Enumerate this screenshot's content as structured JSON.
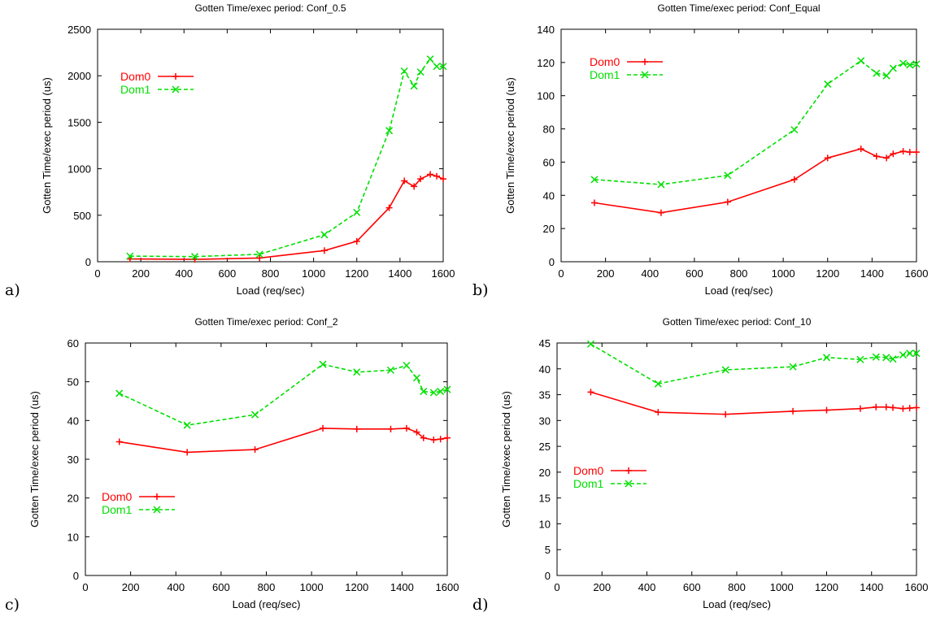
{
  "colors": {
    "dom0": "#ff0000",
    "dom1": "#00e000",
    "axis": "#000000",
    "background": "#ffffff"
  },
  "chart_data": [
    {
      "panel_label": "a)",
      "type": "line",
      "title": "Gotten Time/exec period: Conf_0.5",
      "xlabel": "Load (req/sec)",
      "ylabel": "Gotten Time/exec period (us)",
      "xlim": [
        0,
        1600
      ],
      "ylim": [
        0,
        2500
      ],
      "xticks": [
        0,
        200,
        400,
        600,
        800,
        1000,
        1200,
        1400,
        1600
      ],
      "yticks": [
        0,
        500,
        1000,
        1500,
        2000,
        2500
      ],
      "grid": false,
      "legend_position": "top-left",
      "series": [
        {
          "name": "Dom0",
          "color": "#ff0000",
          "style": "solid",
          "marker": "plus",
          "x": [
            150,
            450,
            750,
            1050,
            1200,
            1350,
            1420,
            1465,
            1495,
            1540,
            1570,
            1600
          ],
          "y": [
            30,
            25,
            40,
            120,
            220,
            580,
            870,
            810,
            890,
            940,
            920,
            890
          ]
        },
        {
          "name": "Dom1",
          "color": "#00e000",
          "style": "dashed",
          "marker": "x",
          "x": [
            150,
            450,
            750,
            1050,
            1200,
            1350,
            1420,
            1465,
            1495,
            1540,
            1570,
            1600
          ],
          "y": [
            60,
            55,
            80,
            290,
            530,
            1410,
            2050,
            1890,
            2040,
            2180,
            2100,
            2100
          ]
        }
      ]
    },
    {
      "panel_label": "b)",
      "type": "line",
      "title": "Gotten Time/exec period: Conf_Equal",
      "xlabel": "Load (req/sec)",
      "ylabel": "Gotten Time/exec period (us)",
      "xlim": [
        0,
        1600
      ],
      "ylim": [
        0,
        140
      ],
      "xticks": [
        0,
        200,
        400,
        600,
        800,
        1000,
        1200,
        1400,
        1600
      ],
      "yticks": [
        0,
        20,
        40,
        60,
        80,
        100,
        120,
        140
      ],
      "grid": false,
      "legend_position": "top-left",
      "series": [
        {
          "name": "Dom0",
          "color": "#ff0000",
          "style": "solid",
          "marker": "plus",
          "x": [
            150,
            450,
            750,
            1050,
            1200,
            1350,
            1420,
            1465,
            1495,
            1540,
            1570,
            1600
          ],
          "y": [
            35.5,
            29.5,
            36,
            49.5,
            62.5,
            68,
            63.5,
            62.5,
            65,
            66.5,
            66,
            66
          ]
        },
        {
          "name": "Dom1",
          "color": "#00e000",
          "style": "dashed",
          "marker": "x",
          "x": [
            150,
            450,
            750,
            1050,
            1200,
            1350,
            1420,
            1465,
            1495,
            1540,
            1570,
            1600
          ],
          "y": [
            49.5,
            46.5,
            52,
            79.5,
            107,
            121,
            113.5,
            112,
            116.5,
            119.5,
            118.5,
            119
          ]
        }
      ]
    },
    {
      "panel_label": "c)",
      "type": "line",
      "title": "Gotten Time/exec period: Conf_2",
      "xlabel": "Load (req/sec)",
      "ylabel": "Gotten Time/exec period (us)",
      "xlim": [
        0,
        1600
      ],
      "ylim": [
        0,
        60
      ],
      "xticks": [
        0,
        200,
        400,
        600,
        800,
        1000,
        1200,
        1400,
        1600
      ],
      "yticks": [
        0,
        10,
        20,
        30,
        40,
        50,
        60
      ],
      "grid": false,
      "legend_position": "bottom-left",
      "series": [
        {
          "name": "Dom0",
          "color": "#ff0000",
          "style": "solid",
          "marker": "plus",
          "x": [
            150,
            450,
            750,
            1050,
            1200,
            1350,
            1420,
            1465,
            1495,
            1540,
            1570,
            1600
          ],
          "y": [
            34.5,
            31.8,
            32.5,
            38,
            37.8,
            37.8,
            38,
            37,
            35.5,
            35,
            35.2,
            35.5
          ]
        },
        {
          "name": "Dom1",
          "color": "#00e000",
          "style": "dashed",
          "marker": "x",
          "x": [
            150,
            450,
            750,
            1050,
            1200,
            1350,
            1420,
            1465,
            1495,
            1540,
            1570,
            1600
          ],
          "y": [
            47,
            38.8,
            41.5,
            54.5,
            52.5,
            53,
            54.2,
            51,
            47.5,
            47.2,
            47.5,
            48
          ]
        }
      ]
    },
    {
      "panel_label": "d)",
      "type": "line",
      "title": "Gotten Time/exec period: Conf_10",
      "xlabel": "Load (req/sec)",
      "ylabel": "Gotten Time/exec period (us)",
      "xlim": [
        0,
        1600
      ],
      "ylim": [
        0,
        45
      ],
      "xticks": [
        0,
        200,
        400,
        600,
        800,
        1000,
        1200,
        1400,
        1600
      ],
      "yticks": [
        0,
        5,
        10,
        15,
        20,
        25,
        30,
        35,
        40,
        45
      ],
      "grid": false,
      "legend_position": "middle-left",
      "series": [
        {
          "name": "Dom0",
          "color": "#ff0000",
          "style": "solid",
          "marker": "plus",
          "x": [
            150,
            450,
            750,
            1050,
            1200,
            1350,
            1420,
            1465,
            1495,
            1540,
            1570,
            1600
          ],
          "y": [
            35.5,
            31.6,
            31.2,
            31.8,
            32,
            32.3,
            32.6,
            32.6,
            32.5,
            32.3,
            32.4,
            32.5
          ]
        },
        {
          "name": "Dom1",
          "color": "#00e000",
          "style": "dashed",
          "marker": "x",
          "x": [
            150,
            450,
            750,
            1050,
            1200,
            1350,
            1420,
            1465,
            1495,
            1540,
            1570,
            1600
          ],
          "y": [
            44.8,
            37.1,
            39.8,
            40.4,
            42.2,
            41.8,
            42.3,
            42.2,
            41.9,
            42.7,
            43,
            43
          ]
        }
      ]
    }
  ]
}
